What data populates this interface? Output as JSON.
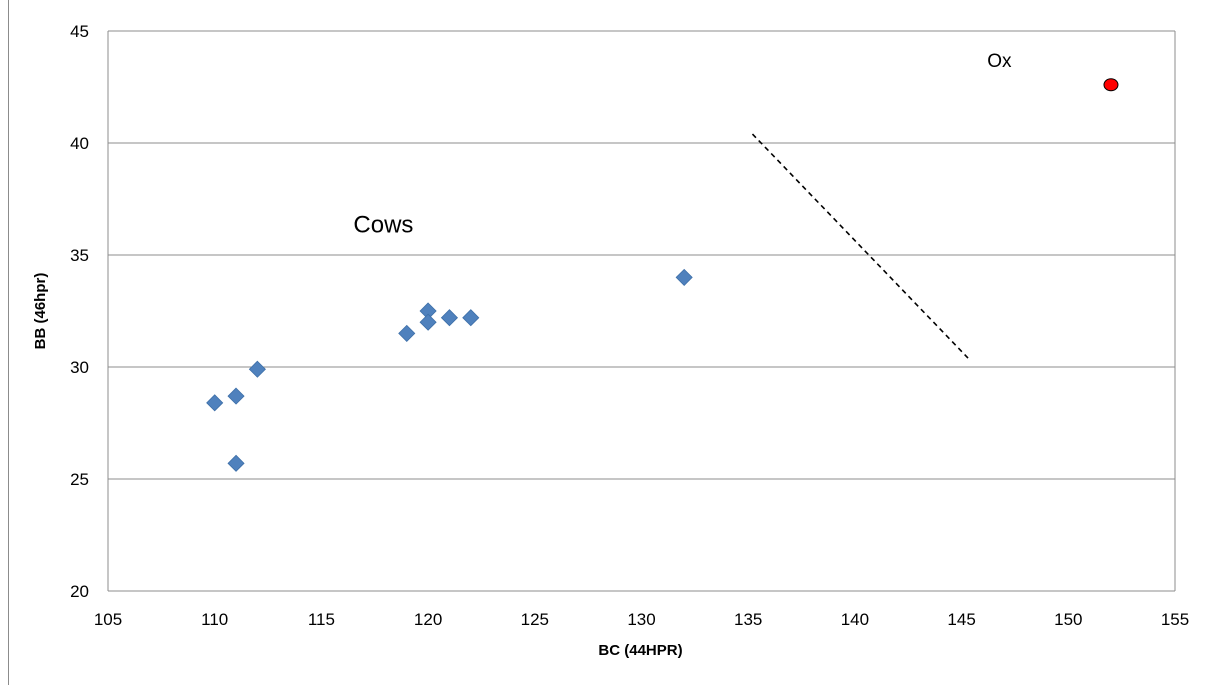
{
  "chart_data": {
    "type": "scatter",
    "xlabel": "BC (44HPR)",
    "ylabel": "BB (46hpr)",
    "xlim": [
      105,
      155
    ],
    "ylim": [
      20,
      45
    ],
    "xticks": [
      105,
      110,
      115,
      120,
      125,
      130,
      135,
      140,
      145,
      150,
      155
    ],
    "yticks": [
      20,
      25,
      30,
      35,
      40,
      45
    ],
    "grid": "horizontal",
    "series": [
      {
        "marker": "diamond",
        "color": "#4f81bd",
        "points": [
          {
            "x": 110,
            "y": 28.4
          },
          {
            "x": 111,
            "y": 28.7
          },
          {
            "x": 111,
            "y": 25.7
          },
          {
            "x": 112,
            "y": 29.9
          },
          {
            "x": 119,
            "y": 31.5
          },
          {
            "x": 120,
            "y": 32.5
          },
          {
            "x": 120,
            "y": 32.0
          },
          {
            "x": 121,
            "y": 32.2
          },
          {
            "x": 122,
            "y": 32.2
          },
          {
            "x": 132,
            "y": 34.0
          }
        ]
      },
      {
        "marker": "circle",
        "color": "#ff0000",
        "points": [
          {
            "x": 152,
            "y": 42.6
          }
        ]
      }
    ],
    "divider_line": {
      "style": "dashed",
      "from": {
        "x": 135.2,
        "y": 40.4
      },
      "to": {
        "x": 145.3,
        "y": 30.4
      }
    },
    "annotations": [
      {
        "text": "Cows",
        "x": 116.5,
        "y": 36.0,
        "size": "large"
      },
      {
        "text": "Ox",
        "x": 146.2,
        "y": 43.4,
        "size": "medium"
      }
    ]
  }
}
